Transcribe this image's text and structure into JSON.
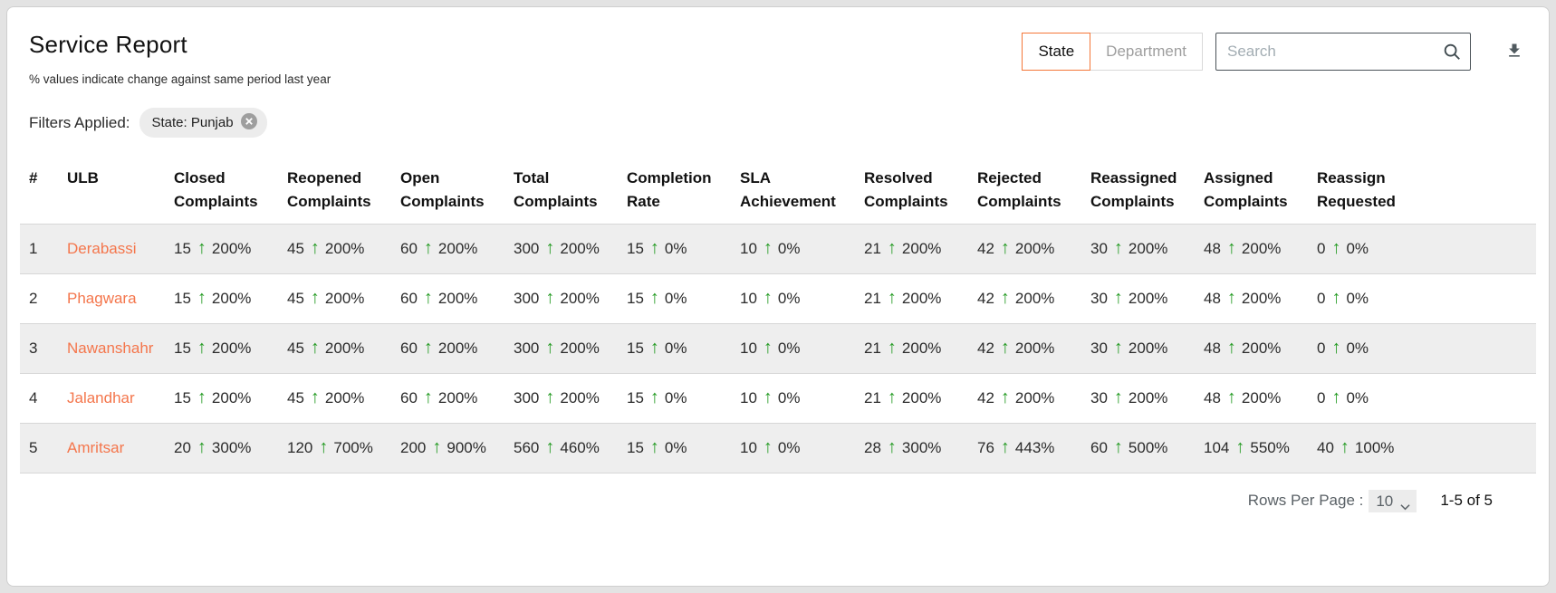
{
  "header": {
    "title": "Service Report",
    "subtitle": "% values indicate change against same period last year",
    "toggle": [
      {
        "label": "State",
        "active": true
      },
      {
        "label": "Department",
        "active": false
      }
    ],
    "search_placeholder": "Search"
  },
  "filters": {
    "label": "Filters Applied:",
    "chips": [
      {
        "label": "State: Punjab"
      }
    ]
  },
  "icons": {
    "up_arrow": "↑",
    "search": "search-magnifier",
    "download": "download-arrow",
    "chip_close": "close-circle",
    "select_chevron": "chevron-down"
  },
  "colors": {
    "accent_orange": "#f47738",
    "link_orange": "#f4764c",
    "positive_green": "#259b24",
    "row_stripe": "#eeeeee"
  },
  "table": {
    "columns": [
      "#",
      "ULB",
      "Closed Complaints",
      "Reopened Complaints",
      "Open Complaints",
      "Total Complaints",
      "Completion Rate",
      "SLA Achievement",
      "Resolved Complaints",
      "Rejected Complaints",
      "Reassigned Complaints",
      "Assigned Complaints",
      "Reassign Requested"
    ],
    "rows": [
      {
        "index": "1",
        "ulb": "Derabassi",
        "metrics": [
          {
            "value": "15",
            "change": "200%"
          },
          {
            "value": "45",
            "change": "200%"
          },
          {
            "value": "60",
            "change": "200%"
          },
          {
            "value": "300",
            "change": "200%"
          },
          {
            "value": "15",
            "change": "0%"
          },
          {
            "value": "10",
            "change": "0%"
          },
          {
            "value": "21",
            "change": "200%"
          },
          {
            "value": "42",
            "change": "200%"
          },
          {
            "value": "30",
            "change": "200%"
          },
          {
            "value": "48",
            "change": "200%"
          },
          {
            "value": "0",
            "change": "0%"
          }
        ]
      },
      {
        "index": "2",
        "ulb": "Phagwara",
        "metrics": [
          {
            "value": "15",
            "change": "200%"
          },
          {
            "value": "45",
            "change": "200%"
          },
          {
            "value": "60",
            "change": "200%"
          },
          {
            "value": "300",
            "change": "200%"
          },
          {
            "value": "15",
            "change": "0%"
          },
          {
            "value": "10",
            "change": "0%"
          },
          {
            "value": "21",
            "change": "200%"
          },
          {
            "value": "42",
            "change": "200%"
          },
          {
            "value": "30",
            "change": "200%"
          },
          {
            "value": "48",
            "change": "200%"
          },
          {
            "value": "0",
            "change": "0%"
          }
        ]
      },
      {
        "index": "3",
        "ulb": "Nawanshahr",
        "metrics": [
          {
            "value": "15",
            "change": "200%"
          },
          {
            "value": "45",
            "change": "200%"
          },
          {
            "value": "60",
            "change": "200%"
          },
          {
            "value": "300",
            "change": "200%"
          },
          {
            "value": "15",
            "change": "0%"
          },
          {
            "value": "10",
            "change": "0%"
          },
          {
            "value": "21",
            "change": "200%"
          },
          {
            "value": "42",
            "change": "200%"
          },
          {
            "value": "30",
            "change": "200%"
          },
          {
            "value": "48",
            "change": "200%"
          },
          {
            "value": "0",
            "change": "0%"
          }
        ]
      },
      {
        "index": "4",
        "ulb": "Jalandhar",
        "metrics": [
          {
            "value": "15",
            "change": "200%"
          },
          {
            "value": "45",
            "change": "200%"
          },
          {
            "value": "60",
            "change": "200%"
          },
          {
            "value": "300",
            "change": "200%"
          },
          {
            "value": "15",
            "change": "0%"
          },
          {
            "value": "10",
            "change": "0%"
          },
          {
            "value": "21",
            "change": "200%"
          },
          {
            "value": "42",
            "change": "200%"
          },
          {
            "value": "30",
            "change": "200%"
          },
          {
            "value": "48",
            "change": "200%"
          },
          {
            "value": "0",
            "change": "0%"
          }
        ]
      },
      {
        "index": "5",
        "ulb": "Amritsar",
        "metrics": [
          {
            "value": "20",
            "change": "300%"
          },
          {
            "value": "120",
            "change": "700%"
          },
          {
            "value": "200",
            "change": "900%"
          },
          {
            "value": "560",
            "change": "460%"
          },
          {
            "value": "15",
            "change": "0%"
          },
          {
            "value": "10",
            "change": "0%"
          },
          {
            "value": "28",
            "change": "300%"
          },
          {
            "value": "76",
            "change": "443%"
          },
          {
            "value": "60",
            "change": "500%"
          },
          {
            "value": "104",
            "change": "550%"
          },
          {
            "value": "40",
            "change": "100%"
          }
        ]
      }
    ]
  },
  "footer": {
    "rows_per_page_label": "Rows Per Page :",
    "rows_per_page_value": "10",
    "range_label": "1-5 of 5"
  }
}
